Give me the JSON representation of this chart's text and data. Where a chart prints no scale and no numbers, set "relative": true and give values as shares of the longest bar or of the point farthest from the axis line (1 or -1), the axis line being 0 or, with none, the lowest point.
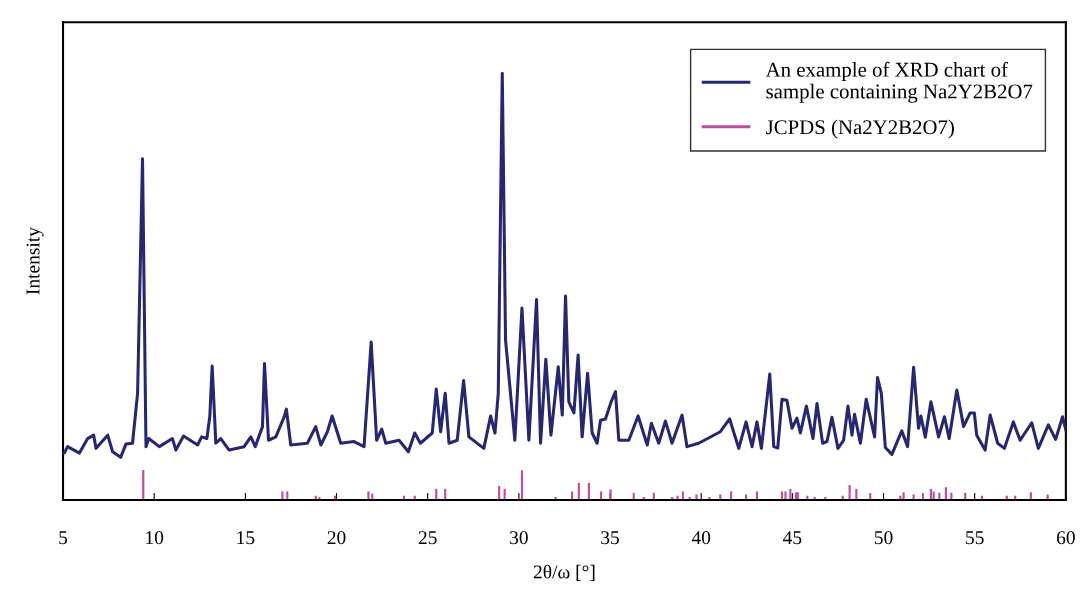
{
  "chart_data": {
    "type": "line",
    "relative": true,
    "xlabel": "2θ/ω [°]",
    "ylabel": "Intensity",
    "xlim": [
      5,
      60
    ],
    "xticks": [
      5,
      10,
      15,
      20,
      25,
      30,
      35,
      40,
      45,
      50,
      55,
      60
    ],
    "grid": false,
    "legend": "top right",
    "series": [
      {
        "name": "An example of XRD chart of\nsample containing Na2Y2B2O7",
        "color": "#262673",
        "x": [
          5.0,
          5.07,
          5.25,
          5.9,
          6.35,
          6.68,
          6.81,
          7.45,
          7.72,
          8.16,
          8.45,
          8.81,
          9.09,
          9.36,
          9.55,
          9.7,
          10.28,
          11.0,
          11.19,
          11.61,
          12.38,
          12.6,
          12.89,
          13.05,
          13.18,
          13.38,
          13.65,
          14.11,
          14.93,
          15.3,
          15.54,
          15.94,
          16.05,
          16.27,
          16.67,
          17.13,
          17.25,
          17.49,
          18.4,
          18.86,
          19.14,
          19.5,
          19.76,
          20.23,
          20.96,
          21.51,
          21.9,
          22.2,
          22.48,
          22.7,
          23.43,
          23.94,
          24.29,
          24.6,
          25.25,
          25.47,
          25.71,
          25.96,
          26.17,
          26.62,
          26.97,
          27.26,
          28.08,
          28.45,
          28.69,
          28.87,
          29.09,
          29.27,
          29.78,
          30.17,
          30.55,
          30.97,
          31.19,
          31.48,
          31.76,
          32.16,
          32.38,
          32.56,
          32.74,
          33.02,
          33.25,
          33.47,
          33.77,
          34.02,
          34.29,
          34.48,
          34.75,
          35.06,
          35.3,
          35.48,
          36.03,
          36.54,
          37.04,
          37.27,
          37.67,
          38.04,
          38.4,
          38.95,
          39.22,
          39.86,
          41.05,
          41.56,
          42.06,
          42.46,
          42.79,
          43.06,
          43.3,
          43.76,
          43.98,
          44.2,
          44.43,
          44.7,
          44.98,
          45.25,
          45.44,
          45.77,
          46.13,
          46.35,
          46.66,
          46.9,
          47.17,
          47.5,
          47.81,
          48.05,
          48.27,
          48.41,
          48.73,
          49.05,
          49.51,
          49.67,
          49.88,
          50.1,
          50.46,
          51.0,
          51.32,
          51.65,
          51.92,
          52.05,
          52.29,
          52.6,
          53.02,
          53.34,
          53.6,
          54.02,
          54.39,
          54.75,
          54.98,
          55.11,
          55.57,
          55.85,
          56.26,
          56.63,
          57.12,
          57.49,
          58.13,
          58.49,
          59.04,
          59.44,
          59.82,
          60.0
        ],
        "values": [
          0.11,
          0.11,
          0.125,
          0.11,
          0.144,
          0.152,
          0.121,
          0.152,
          0.113,
          0.1,
          0.131,
          0.133,
          0.25,
          0.8,
          0.125,
          0.144,
          0.125,
          0.144,
          0.117,
          0.15,
          0.129,
          0.148,
          0.144,
          0.195,
          0.314,
          0.133,
          0.144,
          0.117,
          0.125,
          0.148,
          0.125,
          0.172,
          0.32,
          0.14,
          0.148,
          0.195,
          0.213,
          0.129,
          0.133,
          0.172,
          0.129,
          0.16,
          0.197,
          0.133,
          0.137,
          0.125,
          0.37,
          0.14,
          0.166,
          0.133,
          0.14,
          0.113,
          0.157,
          0.133,
          0.157,
          0.26,
          0.16,
          0.25,
          0.133,
          0.14,
          0.28,
          0.148,
          0.121,
          0.197,
          0.157,
          0.25,
          1.0,
          0.375,
          0.14,
          0.45,
          0.14,
          0.47,
          0.133,
          0.33,
          0.152,
          0.312,
          0.199,
          0.478,
          0.23,
          0.204,
          0.34,
          0.148,
          0.297,
          0.157,
          0.133,
          0.187,
          0.19,
          0.23,
          0.254,
          0.14,
          0.14,
          0.197,
          0.129,
          0.18,
          0.133,
          0.185,
          0.133,
          0.199,
          0.125,
          0.133,
          0.16,
          0.19,
          0.121,
          0.183,
          0.125,
          0.183,
          0.121,
          0.295,
          0.125,
          0.122,
          0.236,
          0.234,
          0.168,
          0.192,
          0.157,
          0.22,
          0.144,
          0.226,
          0.133,
          0.137,
          0.194,
          0.121,
          0.14,
          0.22,
          0.152,
          0.201,
          0.133,
          0.236,
          0.148,
          0.287,
          0.25,
          0.123,
          0.107,
          0.162,
          0.125,
          0.311,
          0.168,
          0.197,
          0.147,
          0.23,
          0.148,
          0.195,
          0.144,
          0.258,
          0.172,
          0.204,
          0.204,
          0.152,
          0.117,
          0.199,
          0.133,
          0.121,
          0.183,
          0.14,
          0.181,
          0.121,
          0.176,
          0.142,
          0.195,
          0.164
        ]
      },
      {
        "name": "JCPDS (Na2Y2B2O7)",
        "type": "bar",
        "color": "#c0509f",
        "x": [
          9.4,
          17.03,
          17.3,
          18.86,
          19.06,
          19.92,
          21.75,
          21.96,
          23.7,
          24.29,
          25.47,
          25.96,
          28.92,
          29.22,
          30.17,
          32.01,
          32.92,
          33.29,
          33.84,
          34.51,
          35.03,
          36.3,
          36.85,
          37.4,
          38.4,
          38.7,
          39.0,
          39.37,
          39.74,
          40.45,
          41.05,
          41.64,
          42.46,
          43.06,
          44.43,
          44.62,
          44.89,
          45.2,
          45.3,
          45.82,
          46.22,
          46.81,
          47.76,
          48.14,
          48.51,
          49.27,
          50.92,
          51.1,
          51.65,
          52.16,
          52.6,
          52.75,
          53.06,
          53.42,
          53.72,
          54.48,
          55.4,
          56.76,
          57.22,
          58.08,
          59.0
        ],
        "values": [
          0.07,
          0.02,
          0.02,
          0.01,
          0.007,
          0.01,
          0.02,
          0.015,
          0.01,
          0.01,
          0.026,
          0.026,
          0.033,
          0.026,
          0.07,
          0.007,
          0.02,
          0.04,
          0.04,
          0.02,
          0.025,
          0.017,
          0.007,
          0.017,
          0.007,
          0.01,
          0.02,
          0.007,
          0.013,
          0.007,
          0.013,
          0.02,
          0.013,
          0.02,
          0.02,
          0.02,
          0.026,
          0.018,
          0.018,
          0.01,
          0.007,
          0.007,
          0.01,
          0.035,
          0.026,
          0.016,
          0.01,
          0.018,
          0.013,
          0.016,
          0.026,
          0.02,
          0.017,
          0.03,
          0.017,
          0.017,
          0.01,
          0.01,
          0.01,
          0.018,
          0.013
        ]
      }
    ]
  }
}
